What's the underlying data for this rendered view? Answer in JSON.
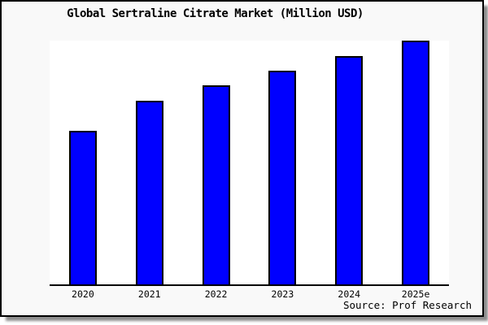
{
  "chart_data": {
    "type": "bar",
    "title": "Global Sertraline Citrate Market (Million USD)",
    "categories": [
      "2020",
      "2021",
      "2022",
      "2023",
      "2024",
      "2025e"
    ],
    "values": [
      62.9,
      75.4,
      81.7,
      87.8,
      93.8,
      100
    ],
    "value_basis": "estimated relative heights; no y-axis tick labels shown; tallest bar (2025e) = 100",
    "xlabel": "",
    "ylabel": "",
    "ylim": [
      0,
      100
    ],
    "grid": false,
    "legend": false,
    "bar_color": "#0000ff",
    "bar_edge_color": "#000000",
    "axis_color": "#000000",
    "plot_background": "#ffffff",
    "canvas_background": "#f9f9f9",
    "source_note": "Source: Prof Research"
  }
}
